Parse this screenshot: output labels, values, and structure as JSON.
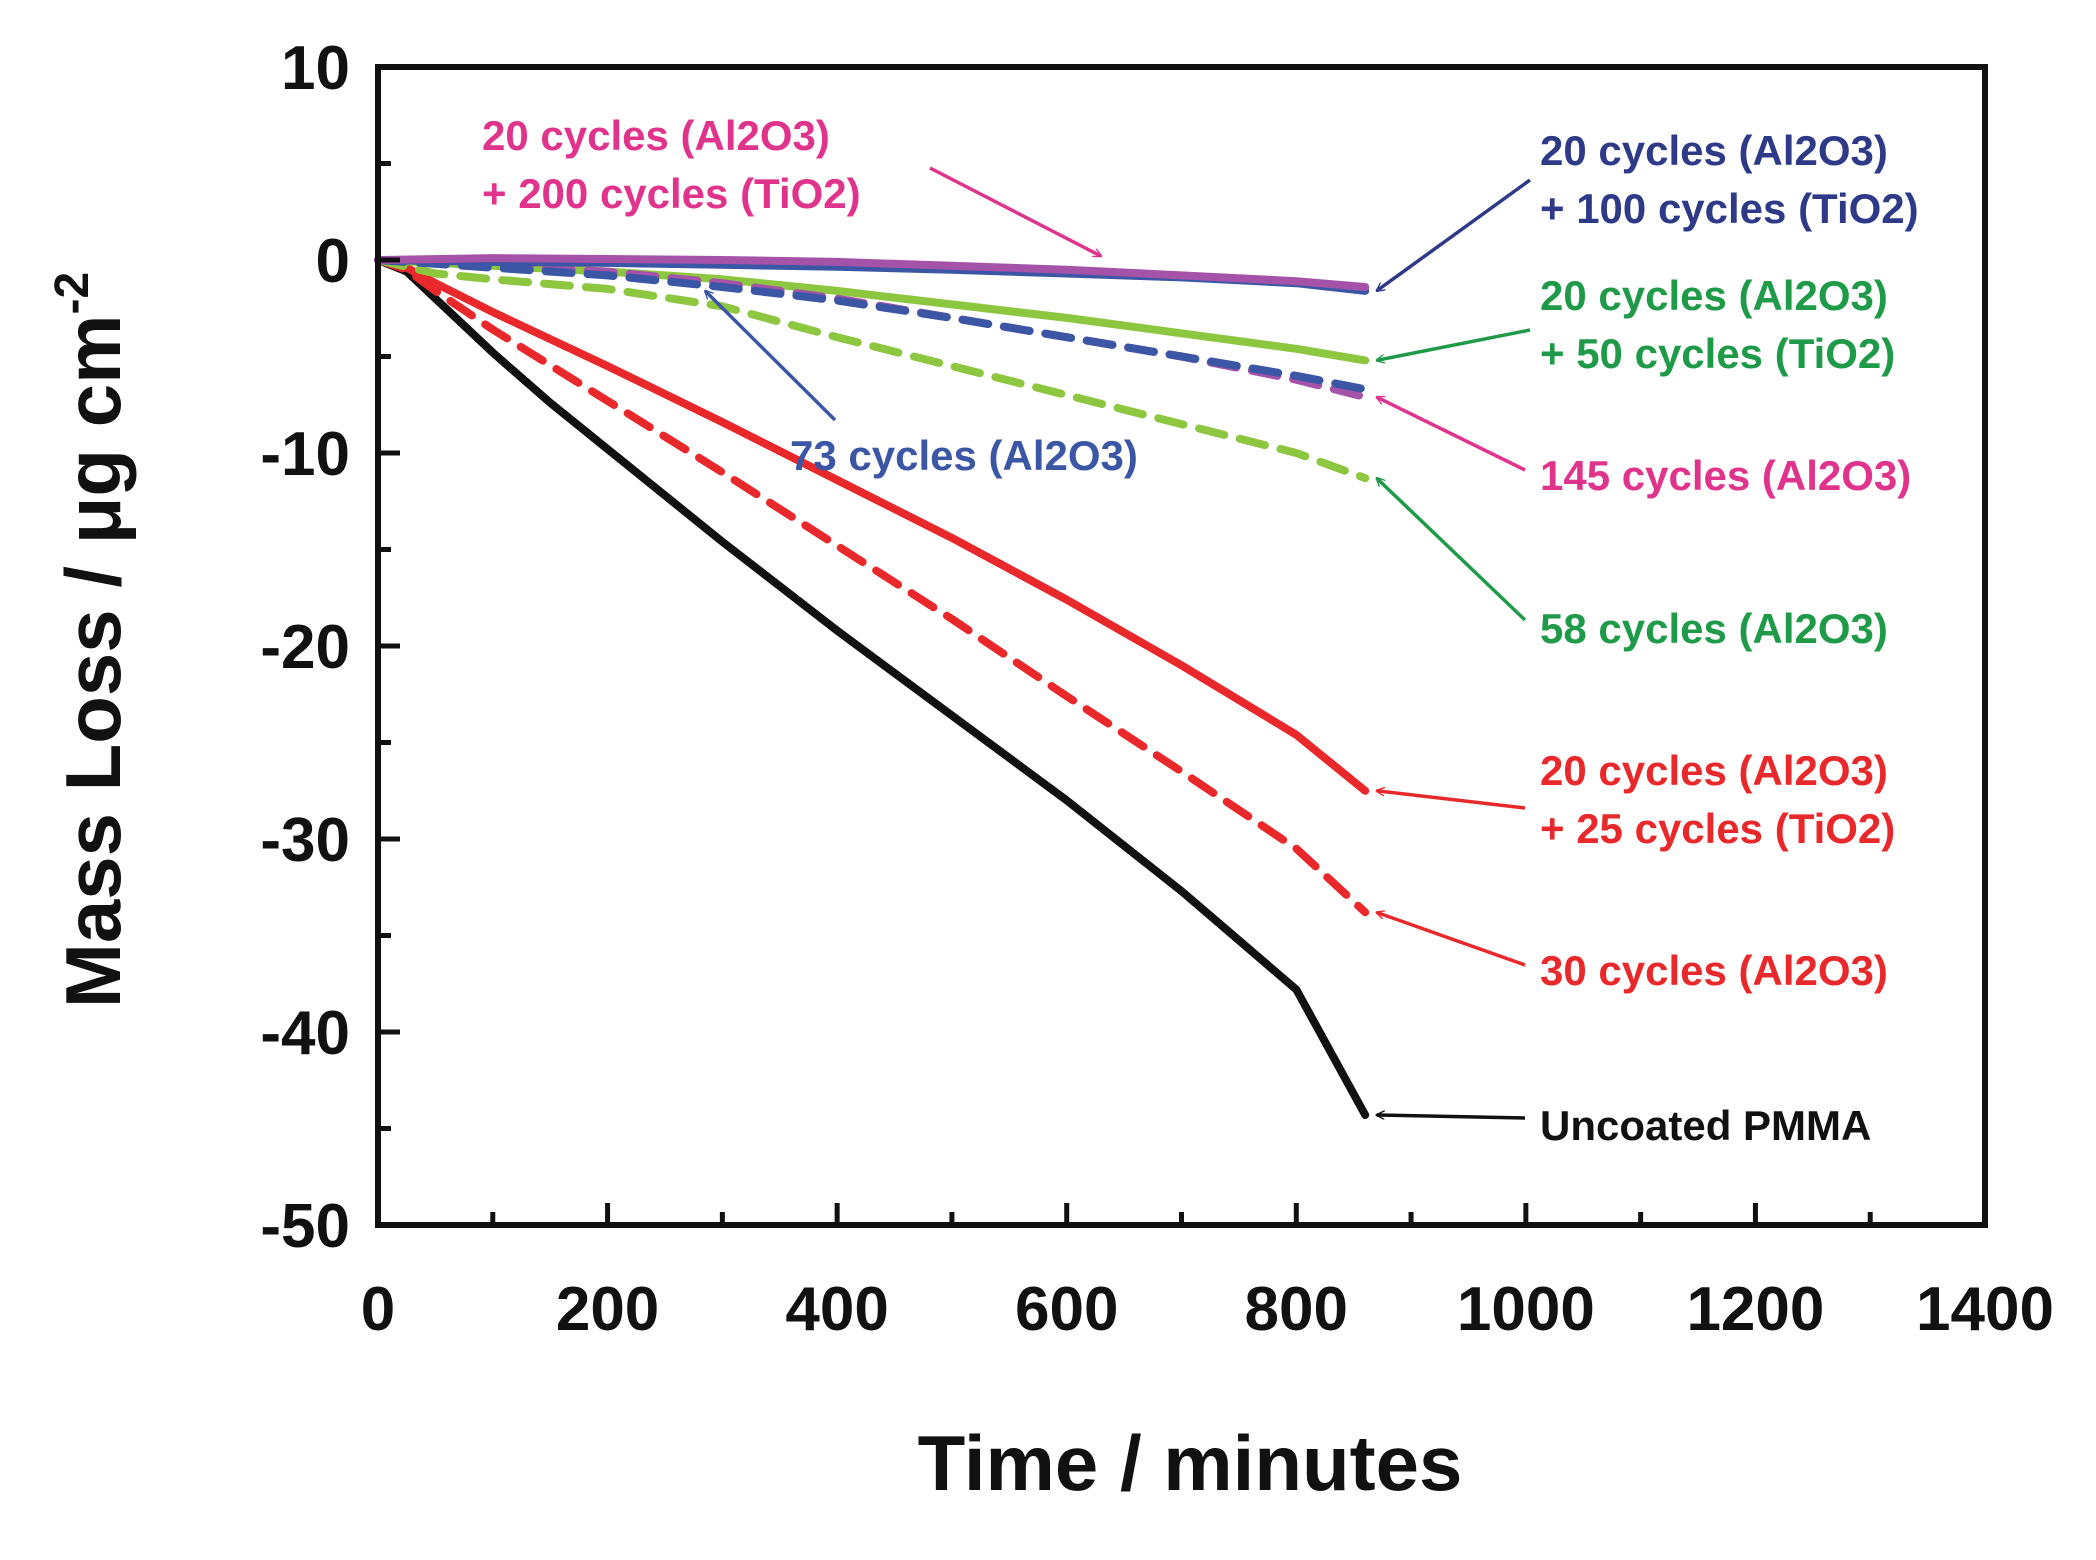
{
  "chart_data": {
    "type": "line",
    "title": "",
    "xlabel": "Time / minutes",
    "ylabel": "Mass Loss / μg cm",
    "ylabel_superscript": "-2",
    "xlim": [
      0,
      1400
    ],
    "ylim": [
      -50,
      10
    ],
    "xticks": [
      0,
      200,
      400,
      600,
      800,
      1000,
      1200,
      1400
    ],
    "yticks": [
      10,
      0,
      -10,
      -20,
      -30,
      -40,
      -50
    ],
    "grid": false,
    "series": [
      {
        "name": "Uncoated PMMA",
        "color": "#111111",
        "dash": false,
        "x": [
          0,
          25,
          50,
          100,
          150,
          200,
          300,
          400,
          500,
          600,
          700,
          800,
          860
        ],
        "y": [
          0,
          -0.6,
          -2.0,
          -4.8,
          -7.4,
          -9.8,
          -14.6,
          -19.2,
          -23.6,
          -28.0,
          -32.7,
          -37.8,
          -44.3
        ]
      },
      {
        "name": "30 cycles (Al2O3)",
        "color": "#e8282b",
        "dash": true,
        "x": [
          0,
          25,
          50,
          100,
          200,
          300,
          400,
          500,
          600,
          700,
          800,
          860
        ],
        "y": [
          0,
          -0.5,
          -1.6,
          -3.6,
          -7.3,
          -11.0,
          -14.8,
          -18.6,
          -22.6,
          -26.5,
          -30.5,
          -33.8
        ]
      },
      {
        "name": "20 cycles (Al2O3) + 25 cycles (TiO2)",
        "color": "#e8282b",
        "dash": false,
        "x": [
          0,
          25,
          50,
          100,
          200,
          300,
          400,
          500,
          600,
          700,
          800,
          860
        ],
        "y": [
          0,
          -0.4,
          -1.2,
          -2.7,
          -5.5,
          -8.4,
          -11.4,
          -14.4,
          -17.6,
          -21.0,
          -24.6,
          -27.5
        ]
      },
      {
        "name": "58 cycles (Al2O3)",
        "color": "#8dc63f",
        "dash": true,
        "x": [
          0,
          50,
          100,
          200,
          300,
          400,
          500,
          600,
          700,
          800,
          860
        ],
        "y": [
          0,
          -0.7,
          -1.0,
          -1.5,
          -2.4,
          -4.0,
          -5.5,
          -7.0,
          -8.5,
          -10.0,
          -11.3
        ]
      },
      {
        "name": "20 cycles (Al2O3) + 50 cycles (TiO2)",
        "color": "#8dc63f",
        "dash": false,
        "x": [
          0,
          100,
          200,
          300,
          400,
          500,
          600,
          700,
          800,
          860
        ],
        "y": [
          0,
          -0.3,
          -0.6,
          -1.0,
          -1.6,
          -2.3,
          -3.0,
          -3.8,
          -4.6,
          -5.2
        ]
      },
      {
        "name": "145 cycles (Al2O3)",
        "color": "#a553a8",
        "dash": true,
        "x": [
          0,
          100,
          200,
          300,
          400,
          500,
          600,
          700,
          800,
          860
        ],
        "y": [
          0,
          -0.3,
          -0.6,
          -1.2,
          -2.0,
          -3.0,
          -4.0,
          -5.0,
          -6.2,
          -7.1
        ]
      },
      {
        "name": "73 cycles (Al2O3)",
        "color": "#3a56a4",
        "dash": true,
        "x": [
          0,
          100,
          200,
          300,
          400,
          500,
          600,
          700,
          800,
          860
        ],
        "y": [
          0,
          -0.4,
          -0.8,
          -1.4,
          -2.1,
          -3.0,
          -4.0,
          -5.0,
          -6.0,
          -6.7
        ]
      },
      {
        "name": "20 cycles (Al2O3) + 100 cycles (TiO2)",
        "color": "#3a56a4",
        "dash": false,
        "x": [
          0,
          100,
          200,
          300,
          400,
          500,
          600,
          700,
          800,
          860
        ],
        "y": [
          0,
          -0.1,
          -0.15,
          -0.25,
          -0.35,
          -0.5,
          -0.7,
          -0.9,
          -1.2,
          -1.6
        ]
      },
      {
        "name": "20 cycles (Al2O3) + 200 cycles (TiO2)",
        "color": "#a553a8",
        "dash": false,
        "x": [
          0,
          100,
          200,
          300,
          400,
          500,
          600,
          700,
          800,
          860
        ],
        "y": [
          0,
          0.1,
          0.05,
          0.0,
          -0.1,
          -0.3,
          -0.5,
          -0.8,
          -1.1,
          -1.4
        ]
      }
    ],
    "annotations": [
      {
        "line1": "20 cycles (Al2O3)",
        "line2": "+ 200 cycles (TiO2)",
        "color": "#e0338c",
        "arrow_to": [
          630,
          0.2
        ]
      },
      {
        "line1": "20 cycles (Al2O3)",
        "line2": "+ 100 cycles (TiO2)",
        "color": "#2e3a87",
        "arrow_to": [
          870,
          -1.6
        ]
      },
      {
        "line1": "20 cycles (Al2O3)",
        "line2": "+ 50 cycles (TiO2)",
        "color": "#1f9a48",
        "arrow_to": [
          870,
          -5.2
        ]
      },
      {
        "line1": "145 cycles (Al2O3)",
        "line2": "",
        "color": "#e0338c",
        "arrow_to": [
          870,
          -7.1
        ]
      },
      {
        "line1": "73 cycles (Al2O3)",
        "line2": "",
        "color": "#3a56a4",
        "arrow_to": [
          285,
          -1.6
        ]
      },
      {
        "line1": "58 cycles (Al2O3)",
        "line2": "",
        "color": "#1f9a48",
        "arrow_to": [
          870,
          -11.3
        ]
      },
      {
        "line1": "20 cycles (Al2O3)",
        "line2": "+ 25 cycles (TiO2)",
        "color": "#e8282b",
        "arrow_to": [
          870,
          -27.5
        ]
      },
      {
        "line1": "30 cycles (Al2O3)",
        "line2": "",
        "color": "#e8282b",
        "arrow_to": [
          870,
          -33.8
        ]
      },
      {
        "line1": "Uncoated PMMA",
        "line2": "",
        "color": "#111111",
        "arrow_to": [
          870,
          -44.3
        ]
      }
    ]
  }
}
